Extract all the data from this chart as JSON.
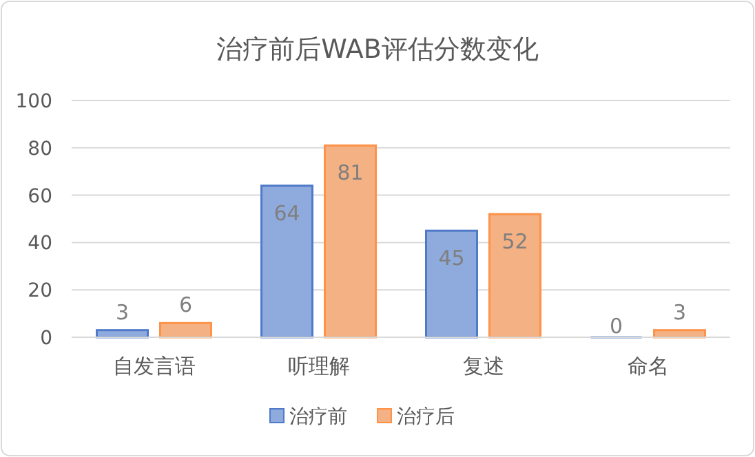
{
  "chart_data": {
    "type": "bar",
    "title": "治疗前后WAB评估分数变化",
    "categories": [
      "自发言语",
      "听理解",
      "复述",
      "命名"
    ],
    "series": [
      {
        "name": "治疗前",
        "color": "#8faadc",
        "values": [
          3,
          64,
          45,
          0
        ]
      },
      {
        "name": "治疗后",
        "color": "#f4b183",
        "values": [
          6,
          81,
          52,
          3
        ]
      }
    ],
    "ylim": [
      0,
      100
    ],
    "yticks": [
      0,
      20,
      40,
      60,
      80,
      100
    ],
    "grid": "y",
    "legend": "bottom",
    "data_labels": true
  }
}
